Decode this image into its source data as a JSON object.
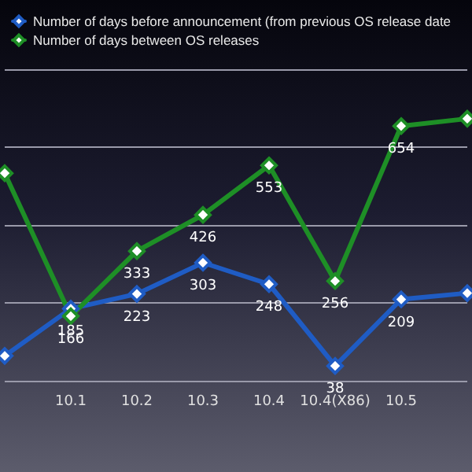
{
  "chart_data": {
    "type": "line",
    "categories": [
      null,
      "10.1",
      "10.2",
      "10.3",
      "10.4",
      "10.4(X86)",
      "10.5",
      null
    ],
    "series": [
      {
        "name": "Number of days before announcement (from previous OS release date",
        "color": "#1f5cc4",
        "values": [
          64,
          185,
          223,
          303,
          248,
          38,
          209,
          225
        ],
        "value_labels": [
          null,
          "185",
          "223",
          "303",
          "248",
          "38",
          "209",
          null
        ]
      },
      {
        "name": "Number of days between OS releases",
        "color": "#1e8f26",
        "values": [
          533,
          166,
          333,
          426,
          553,
          256,
          654,
          673
        ],
        "value_labels": [
          null,
          "166",
          "333",
          "426",
          "553",
          "256",
          "654",
          null
        ]
      }
    ],
    "grid": "y",
    "legend": "top left",
    "marker": "diamond",
    "line_style": "solid"
  }
}
